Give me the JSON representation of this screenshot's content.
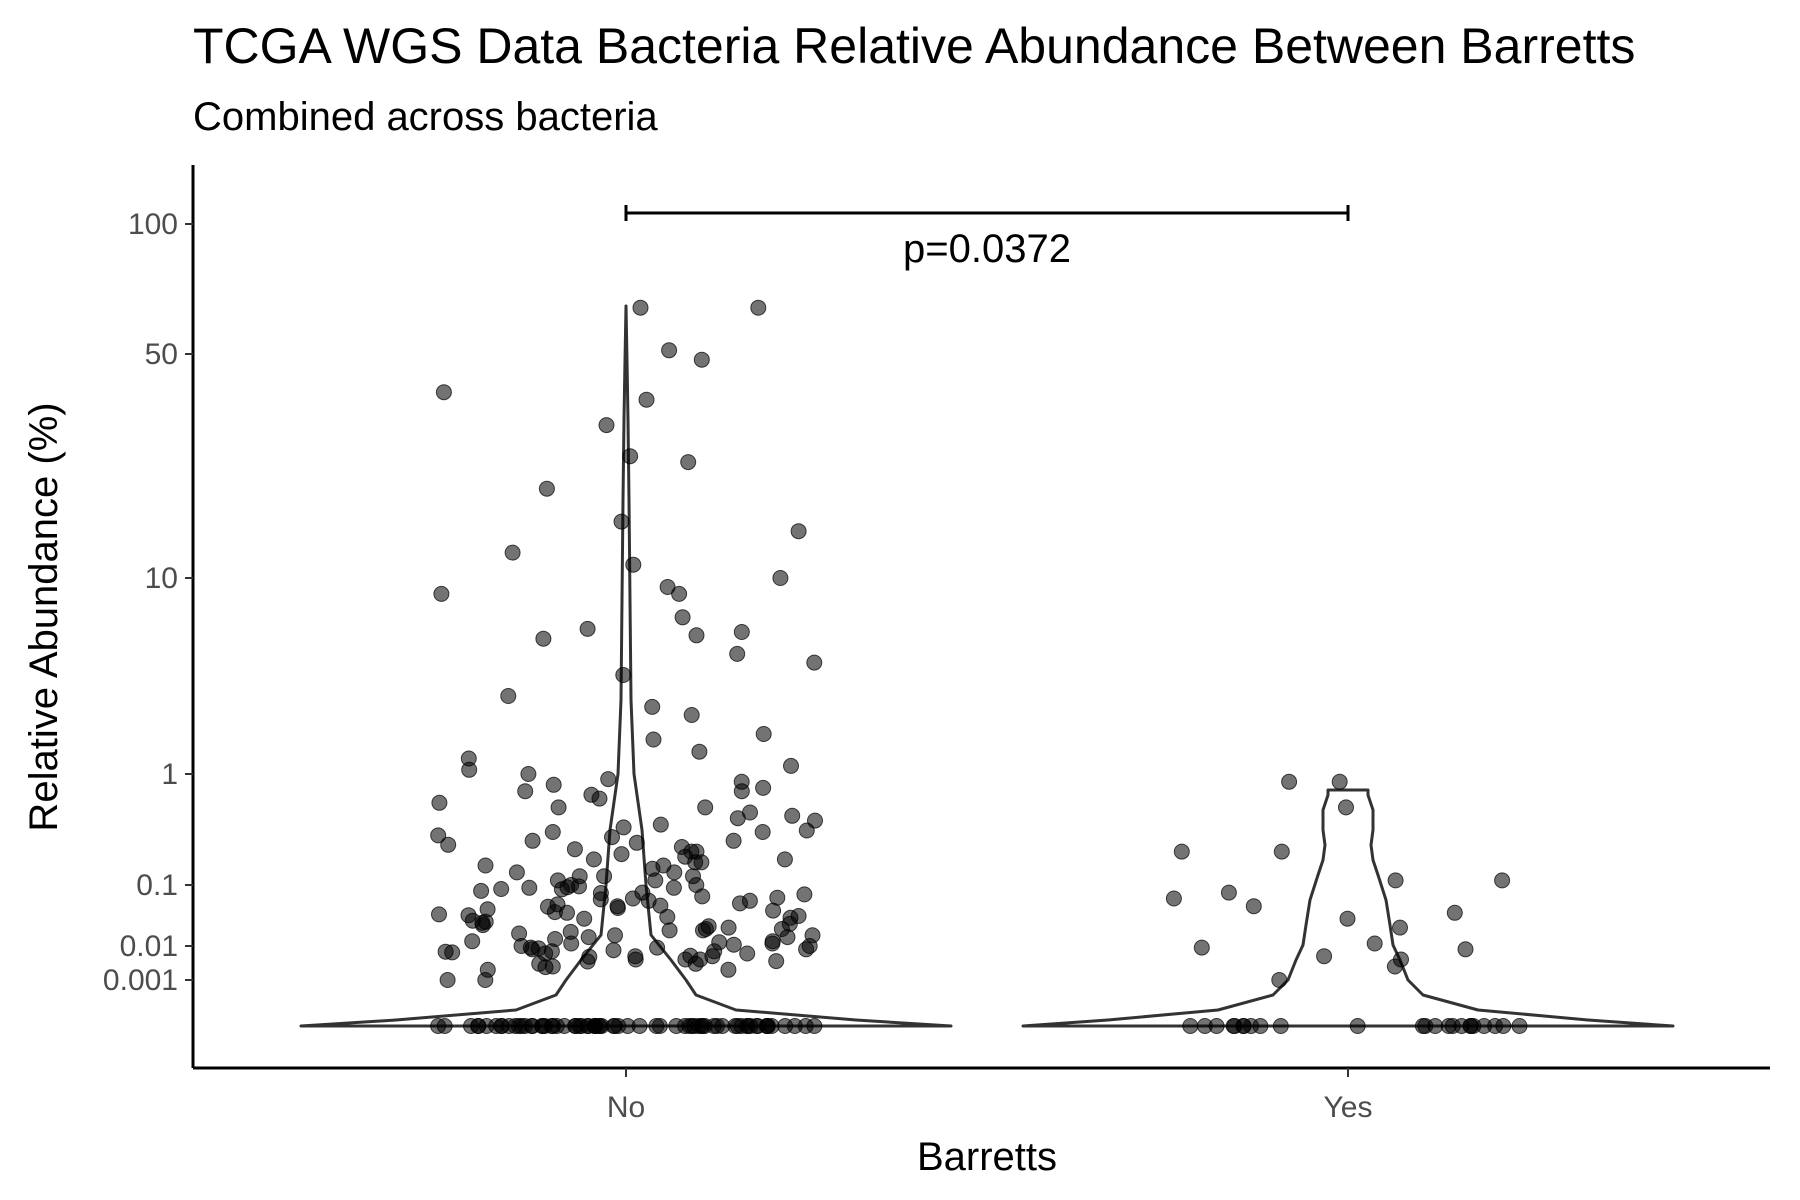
{
  "chart_data": {
    "type": "violin",
    "title": "TCGA WGS Data Bacteria Relative Abundance Between Barretts",
    "subtitle": "Combined across bacteria",
    "xlabel": "Barretts",
    "ylabel": "Relative Abundance (%)",
    "y_scale": "pseudo-log",
    "y_ticks": [
      0.001,
      0.01,
      0.1,
      1,
      10,
      50,
      100
    ],
    "y_tick_labels": [
      "0.001",
      "0.01",
      "0.1",
      "1",
      "10",
      "50",
      "100"
    ],
    "categories": [
      "No",
      "Yes"
    ],
    "annotation": {
      "text": "p=0.0372",
      "from": "No",
      "to": "Yes"
    },
    "point_color": "#000000",
    "point_opacity": 0.55,
    "groups": [
      {
        "category": "No",
        "zero_count": 70,
        "values": [
          64,
          64,
          51,
          48,
          38,
          36,
          30,
          24,
          23,
          19,
          15,
          14,
          12,
          11,
          10,
          9,
          8.3,
          8.3,
          6.3,
          5.5,
          5.3,
          5.1,
          4.9,
          4.1,
          3.7,
          3.2,
          2.5,
          2.2,
          2.0,
          1.6,
          1.5,
          1.3,
          1.2,
          1.1,
          1.05,
          1.0,
          0.9,
          0.85,
          0.8,
          0.75,
          0.7,
          0.7,
          0.65,
          0.6,
          0.55,
          0.5,
          0.5,
          0.45,
          0.4,
          0.38,
          0.35,
          0.3,
          0.3,
          0.28,
          0.25,
          0.24,
          0.22,
          0.2,
          0.2,
          0.19,
          0.18,
          0.17,
          0.16,
          0.15,
          0.14,
          0.13,
          0.12,
          0.12,
          0.11,
          0.1,
          0.1,
          0.095,
          0.09,
          0.085,
          0.08,
          0.075,
          0.07,
          0.065,
          0.06,
          0.055,
          0.05,
          0.048,
          0.045,
          0.042,
          0.04,
          0.038,
          0.035,
          0.033,
          0.03,
          0.028,
          0.026,
          0.025,
          0.024,
          0.022,
          0.02,
          0.019,
          0.018,
          0.017,
          0.016,
          0.015,
          0.014,
          0.013,
          0.012,
          0.012,
          0.011,
          0.01,
          0.01,
          0.009,
          0.009,
          0.008,
          0.008,
          0.007,
          0.007,
          0.006,
          0.006,
          0.005,
          0.005,
          0.004,
          0.004,
          0.003,
          0.003,
          0.002,
          0.002,
          0.001,
          0.001,
          0.33,
          0.27,
          0.21,
          0.16,
          0.13,
          0.11,
          0.092,
          0.074,
          0.058,
          0.046,
          0.036,
          0.029,
          0.023,
          0.018,
          0.014,
          0.011,
          0.0085,
          0.0065,
          0.0048,
          0.0035,
          0.42,
          0.31,
          0.23,
          0.17,
          0.12,
          0.086,
          0.062,
          0.044,
          0.031,
          0.021,
          0.015,
          0.0105,
          0.0075,
          0.0052,
          0.0036,
          0.0025,
          0.25,
          0.15,
          0.09,
          0.055,
          0.032,
          0.019,
          0.0115,
          0.0068,
          0.004,
          0.0024
        ]
      },
      {
        "category": "Yes",
        "zero_count": 24,
        "values": [
          0.85,
          0.85,
          0.5,
          0.2,
          0.2,
          0.11,
          0.11,
          0.075,
          0.06,
          0.045,
          0.035,
          0.028,
          0.02,
          0.011,
          0.009,
          0.008,
          0.005,
          0.004,
          0.0025,
          0.001
        ]
      }
    ]
  }
}
